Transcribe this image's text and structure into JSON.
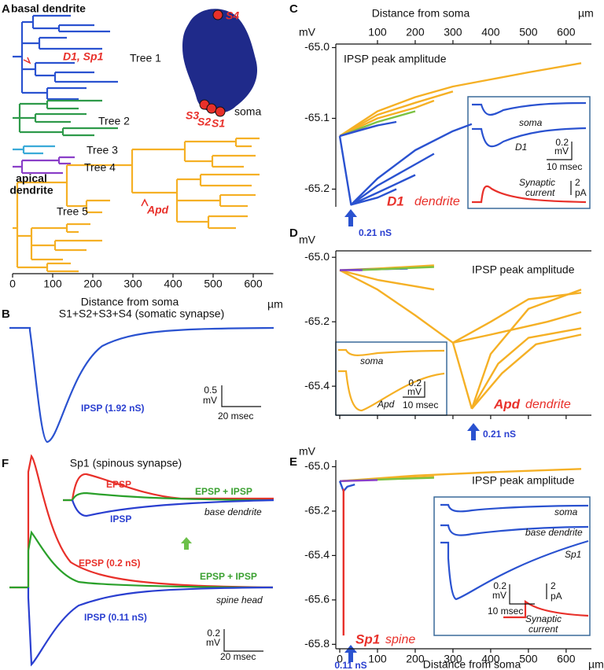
{
  "chart_data": [
    {
      "type": "tree",
      "panel": "A",
      "labels": [
        "basal dendrite",
        "D1, Sp1",
        "Tree 1",
        "Tree 2",
        "Tree 3",
        "Tree 4",
        "apical",
        "dendrite",
        "Tree 5",
        "Apd",
        "S4",
        "S3",
        "S2",
        "S1",
        "soma"
      ],
      "xlabel": "Distance from soma",
      "xunit": "µm",
      "xlim": [
        0,
        650
      ],
      "xticks": [
        0,
        100,
        200,
        300,
        400,
        500,
        600
      ]
    },
    {
      "type": "trace",
      "panel": "B",
      "title": "S1+S2+S3+S4 (somatic synapse)",
      "annotations": [
        "IPSP (1.92 nS)"
      ],
      "scale_bar": [
        "0.5",
        "mV",
        "20 msec"
      ]
    },
    {
      "type": "line",
      "panel": "C",
      "xlabel": "Distance from soma",
      "xunit": "µm",
      "ylabel": "mV",
      "xlim": [
        0,
        667
      ],
      "ylim": [
        -65.225,
        -64.995
      ],
      "xticks": [
        100,
        200,
        300,
        400,
        500,
        600
      ],
      "yticks": [
        {
          "value": -65.0,
          "label": "-65.0"
        },
        -65.1,
        -65.2
      ],
      "annotation": "IPSP peak amplitude",
      "site": [
        "D1",
        "dendrite"
      ],
      "stimulus": "0.21 nS",
      "inset": [
        "soma",
        "D1",
        "0.2",
        "mV",
        "10 msec",
        "Synaptic",
        "current",
        "2",
        "pA"
      ],
      "series": [
        {
          "color": "#f5b025",
          "x": [
            0,
            100,
            200,
            300,
            400,
            500,
            640
          ],
          "values": [
            -65.125,
            -65.09,
            -65.07,
            -65.055,
            -65.045,
            -65.035,
            -65.022
          ]
        },
        {
          "color": "#f5b025",
          "x": [
            0,
            100,
            200,
            300
          ],
          "values": [
            -65.125,
            -65.095,
            -65.078,
            -65.062
          ]
        },
        {
          "color": "#f5b025",
          "x": [
            0,
            100,
            200,
            250
          ],
          "values": [
            -65.125,
            -65.1,
            -65.085,
            -65.075
          ]
        },
        {
          "color": "#7cc242",
          "x": [
            0,
            100,
            200
          ],
          "values": [
            -65.125,
            -65.105,
            -65.09
          ]
        },
        {
          "color": "#8a3fc8",
          "x": [
            0,
            50,
            100
          ],
          "values": [
            -65.125,
            -65.117,
            -65.11
          ]
        },
        {
          "color": "#2a52d0",
          "x": [
            0,
            100,
            150
          ],
          "values": [
            -65.125,
            -65.11,
            -65.105
          ]
        },
        {
          "color": "#2a52d0",
          "x": [
            0,
            30,
            100,
            200,
            300,
            350
          ],
          "values": [
            -65.125,
            -65.222,
            -65.185,
            -65.145,
            -65.118,
            -65.108
          ]
        },
        {
          "color": "#2a52d0",
          "x": [
            30,
            100,
            200,
            250
          ],
          "values": [
            -65.222,
            -65.195,
            -65.165,
            -65.15
          ]
        },
        {
          "color": "#2a52d0",
          "x": [
            30,
            100,
            200
          ],
          "values": [
            -65.222,
            -65.205,
            -65.18
          ]
        },
        {
          "color": "#2a52d0",
          "x": [
            30,
            100,
            150
          ],
          "values": [
            -65.222,
            -65.212,
            -65.2
          ]
        }
      ]
    },
    {
      "type": "line",
      "panel": "D",
      "ylabel": "mV",
      "xlim": [
        0,
        667
      ],
      "ylim": [
        -65.49,
        -64.98
      ],
      "xticks": [
        0,
        100,
        200,
        300,
        400,
        500,
        600
      ],
      "yticks": [
        {
          "value": -65.0,
          "label": "-65.0"
        },
        -65.2,
        -65.4
      ],
      "annotation": "IPSP peak amplitude",
      "site": [
        "Apd",
        "dendrite"
      ],
      "stimulus": "0.21 nS",
      "inset": [
        "soma",
        "Apd",
        "0.2",
        "mV",
        "10 msec"
      ],
      "series": [
        {
          "color": "#f5b025",
          "x": [
            0,
            100,
            200,
            300,
            350
          ],
          "values": [
            -65.04,
            -65.1,
            -65.18,
            -65.265,
            -65.47
          ]
        },
        {
          "color": "#f5b025",
          "x": [
            350,
            400,
            500,
            640
          ],
          "values": [
            -65.47,
            -65.3,
            -65.16,
            -65.1
          ]
        },
        {
          "color": "#f5b025",
          "x": [
            350,
            420,
            500,
            640
          ],
          "values": [
            -65.47,
            -65.33,
            -65.25,
            -65.22
          ]
        },
        {
          "color": "#f5b025",
          "x": [
            350,
            430,
            520,
            640
          ],
          "values": [
            -65.47,
            -65.36,
            -65.27,
            -65.24
          ]
        },
        {
          "color": "#f5b025",
          "x": [
            300,
            400,
            500,
            640
          ],
          "values": [
            -65.265,
            -65.2,
            -65.13,
            -65.11
          ]
        },
        {
          "color": "#f5b025",
          "x": [
            300,
            400,
            550,
            640
          ],
          "values": [
            -65.265,
            -65.24,
            -65.2,
            -65.17
          ]
        },
        {
          "color": "#f5b025",
          "x": [
            0,
            100,
            200,
            250
          ],
          "values": [
            -65.04,
            -65.07,
            -65.09,
            -65.1
          ]
        },
        {
          "color": "#f5b025",
          "x": [
            0,
            100,
            250
          ],
          "values": [
            -65.04,
            -65.035,
            -65.025
          ]
        },
        {
          "color": "#2a52d0",
          "x": [
            0,
            100,
            180
          ],
          "values": [
            -65.04,
            -65.037,
            -65.035
          ]
        },
        {
          "color": "#7cc242",
          "x": [
            50,
            150,
            250
          ],
          "values": [
            -65.04,
            -65.035,
            -65.03
          ]
        },
        {
          "color": "#8a3fc8",
          "x": [
            0,
            60
          ],
          "values": [
            -65.04,
            -65.04
          ]
        }
      ]
    },
    {
      "type": "line",
      "panel": "E",
      "xlabel": "Distance from soma",
      "xunit": "µm",
      "ylabel": "mV",
      "xlim": [
        0,
        667
      ],
      "ylim": [
        -65.82,
        -64.97
      ],
      "xticks": [
        0,
        100,
        200,
        300,
        400,
        500,
        600
      ],
      "yticks": [
        {
          "value": -65.0,
          "label": "-65.0"
        },
        -65.2,
        -65.4,
        -65.6,
        -65.8
      ],
      "annotation": "IPSP peak amplitude",
      "site": [
        "Sp1",
        "spine"
      ],
      "stimulus": "0.11 nS",
      "inset": [
        "soma",
        "base dendrite",
        "Sp1",
        "0.2",
        "mV",
        "10 msec",
        "2",
        "pA",
        "Synaptic",
        "current"
      ],
      "series": [
        {
          "color": "#f5b025",
          "x": [
            0,
            200,
            400,
            640
          ],
          "values": [
            -65.065,
            -65.04,
            -65.025,
            -65.01
          ]
        },
        {
          "color": "#f5b025",
          "x": [
            0,
            100,
            250
          ],
          "values": [
            -65.065,
            -65.055,
            -65.045
          ]
        },
        {
          "color": "#7cc242",
          "x": [
            0,
            150,
            250
          ],
          "values": [
            -65.065,
            -65.055,
            -65.05
          ]
        },
        {
          "color": "#8a3fc8",
          "x": [
            0,
            100
          ],
          "values": [
            -65.065,
            -65.06
          ]
        },
        {
          "color": "#2a52d0",
          "x": [
            0,
            10,
            20,
            40
          ],
          "values": [
            -65.065,
            -65.11,
            -65.09,
            -65.08
          ]
        },
        {
          "color": "#e8302a",
          "x": [
            10,
            10
          ],
          "values": [
            -65.1,
            -65.76
          ]
        }
      ]
    },
    {
      "type": "trace",
      "panel": "F",
      "title": "Sp1 (spinous synapse)",
      "annotations": [
        "EPSP",
        "EPSP + IPSP",
        "IPSP",
        "base dendrite",
        "EPSP (0.2 nS)",
        "EPSP + IPSP",
        "spine head",
        "IPSP (0.11 nS)"
      ],
      "scale_bar": [
        "0.2",
        "mV",
        "20 msec"
      ]
    }
  ]
}
